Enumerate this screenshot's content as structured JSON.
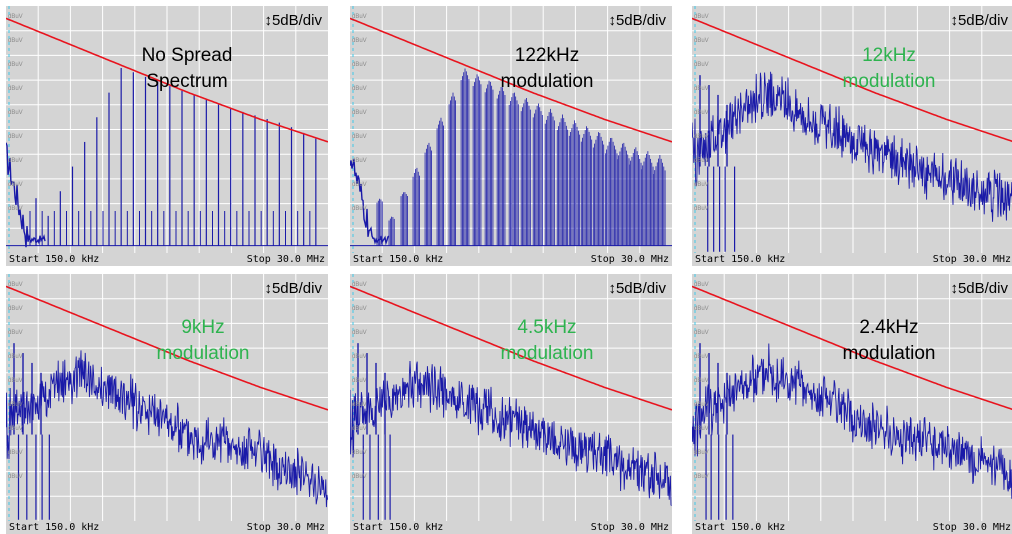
{
  "panels": [
    {
      "scale": "5dB/div",
      "title": [
        "No Spread",
        "Spectrum"
      ],
      "title_color": "#000000",
      "start": "Start 150.0 kHz",
      "stop": "Stop 30.0 MHz",
      "modulation": "none"
    },
    {
      "scale": "5dB/div",
      "title": [
        "122kHz",
        "modulation"
      ],
      "title_color": "#000000",
      "start": "Start 150.0 kHz",
      "stop": "Stop 30.0 MHz",
      "modulation": "122kHz"
    },
    {
      "scale": "5dB/div",
      "title": [
        "12kHz",
        "modulation"
      ],
      "title_color": "#2eb34f",
      "start": "Start 150.0 kHz",
      "stop": "Stop 30.0 MHz",
      "modulation": "12kHz"
    },
    {
      "scale": "5dB/div",
      "title": [
        "9kHz",
        "modulation"
      ],
      "title_color": "#2eb34f",
      "start": "Start 150.0 kHz",
      "stop": "Stop 30.0 MHz",
      "modulation": "9kHz"
    },
    {
      "scale": "5dB/div",
      "title": [
        "4.5kHz",
        "modulation"
      ],
      "title_color": "#2eb34f",
      "start": "Start 150.0 kHz",
      "stop": "Stop 30.0 MHz",
      "modulation": "4.5kHz"
    },
    {
      "scale": "5dB/div",
      "title": [
        "2.4kHz",
        "modulation"
      ],
      "title_color": "#000000",
      "start": "Start 150.0 kHz",
      "stop": "Stop 30.0 MHz",
      "modulation": "2.4kHz"
    }
  ],
  "y_unit_label": "dBuV",
  "colors": {
    "limit_line": "#e8141e",
    "spectrum": "#1a1aa8",
    "grid": "#ffffff",
    "background": "#d4d4d4",
    "marker": "#3fc8e8"
  },
  "chart_data": [
    {
      "type": "line",
      "title": "No Spread Spectrum",
      "x_range_MHz": [
        0.15,
        30
      ],
      "y_per_div_dB": 5,
      "grid": true,
      "series": [
        {
          "values_dB_div": [
            [
              0.15,
              9.5
            ],
            [
              3,
              6.5
            ],
            [
              10,
              5.4
            ],
            [
              30,
              4.5
            ]
          ]
        },
        {
          "values_dB_div": [
            [
              0.15,
              4
            ],
            [
              0.3,
              1.5
            ],
            [
              1,
              7.5
            ],
            [
              5,
              6.0
            ],
            [
              15,
              5.2
            ],
            [
              30,
              4.4
            ]
          ]
        }
      ]
    },
    {
      "type": "line",
      "title": "122kHz modulation",
      "x_range_MHz": [
        0.15,
        30
      ],
      "y_per_div_dB": 5,
      "grid": true,
      "series": [
        {
          "values_dB_div": [
            [
              0.15,
              9.5
            ],
            [
              3,
              6.5
            ],
            [
              10,
              5.4
            ],
            [
              30,
              4.5
            ]
          ]
        },
        {
          "values_dB_div": [
            [
              0.15,
              4
            ],
            [
              0.3,
              1.5
            ],
            [
              1,
              7.5
            ],
            [
              5,
              5.6
            ],
            [
              15,
              4.4
            ],
            [
              30,
              3.8
            ]
          ]
        }
      ]
    },
    {
      "type": "line",
      "title": "12kHz modulation",
      "x_range_MHz": [
        0.15,
        30
      ],
      "y_per_div_dB": 5,
      "grid": true,
      "series": [
        {
          "values_dB_div": [
            [
              0.15,
              9.5
            ],
            [
              3,
              6.5
            ],
            [
              10,
              5.4
            ],
            [
              30,
              4.5
            ]
          ]
        },
        {
          "values_dB_div": [
            [
              0.15,
              4
            ],
            [
              0.5,
              6.5
            ],
            [
              3,
              4.0
            ],
            [
              10,
              3.0
            ],
            [
              30,
              2.0
            ]
          ]
        }
      ]
    },
    {
      "type": "line",
      "title": "9kHz modulation",
      "x_range_MHz": [
        0.15,
        30
      ],
      "y_per_div_dB": 5,
      "grid": true,
      "series": [
        {
          "values_dB_div": [
            [
              0.15,
              9.5
            ],
            [
              3,
              6.5
            ],
            [
              10,
              5.4
            ],
            [
              30,
              4.5
            ]
          ]
        },
        {
          "values_dB_div": [
            [
              0.15,
              4
            ],
            [
              0.5,
              6.0
            ],
            [
              3,
              3.6
            ],
            [
              10,
              2.6
            ],
            [
              30,
              1.4
            ]
          ]
        }
      ]
    },
    {
      "type": "line",
      "title": "4.5kHz modulation",
      "x_range_MHz": [
        0.15,
        30
      ],
      "y_per_div_dB": 5,
      "grid": true,
      "series": [
        {
          "values_dB_div": [
            [
              0.15,
              9.5
            ],
            [
              3,
              6.5
            ],
            [
              10,
              5.4
            ],
            [
              30,
              4.5
            ]
          ]
        },
        {
          "values_dB_div": [
            [
              0.15,
              4
            ],
            [
              0.5,
              5.6
            ],
            [
              3,
              3.6
            ],
            [
              10,
              2.6
            ],
            [
              30,
              1.5
            ]
          ]
        }
      ]
    },
    {
      "type": "line",
      "title": "2.4kHz modulation",
      "x_range_MHz": [
        0.15,
        30
      ],
      "y_per_div_dB": 5,
      "grid": true,
      "series": [
        {
          "values_dB_div": [
            [
              0.15,
              9.5
            ],
            [
              3,
              6.5
            ],
            [
              10,
              5.4
            ],
            [
              30,
              4.5
            ]
          ]
        },
        {
          "values_dB_div": [
            [
              0.15,
              4
            ],
            [
              0.5,
              6.2
            ],
            [
              3,
              3.8
            ],
            [
              10,
              3.0
            ],
            [
              30,
              1.8
            ]
          ]
        }
      ]
    }
  ]
}
